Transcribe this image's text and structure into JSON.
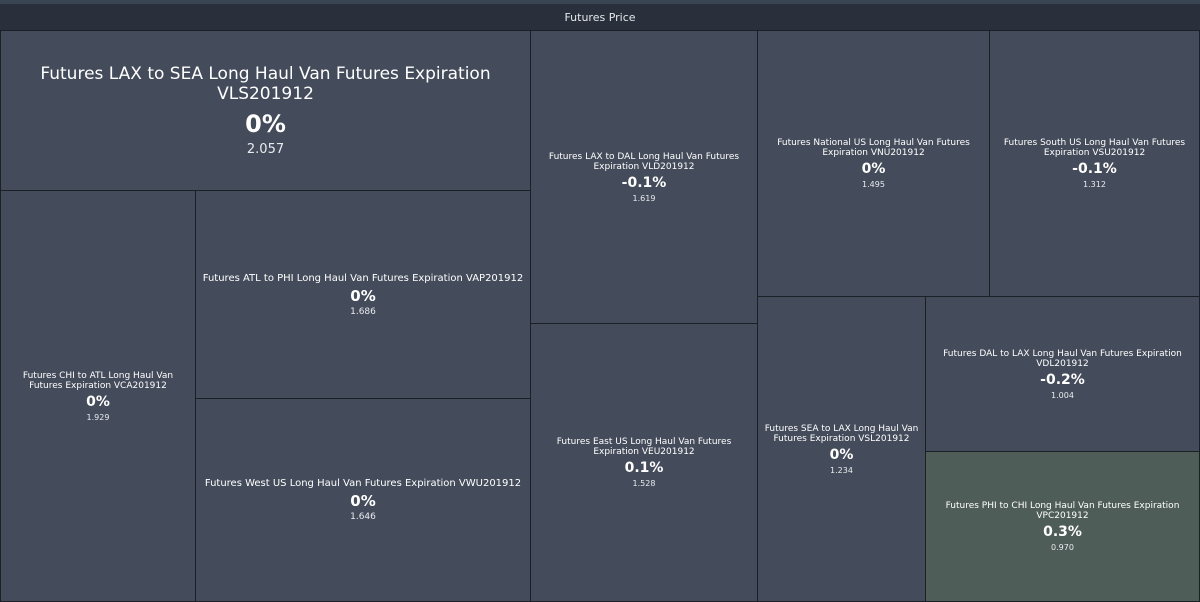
{
  "header": {
    "title": "Futures Price"
  },
  "tiles": [
    {
      "name": "Futures LAX to SEA Long Haul Van Futures Expiration VLS201912",
      "pct": "0%",
      "price": "2.057"
    },
    {
      "name": "Futures LAX to DAL Long Haul Van Futures Expiration VLD201912",
      "pct": "-0.1%",
      "price": "1.619"
    },
    {
      "name": "Futures National US Long Haul Van Futures Expiration VNU201912",
      "pct": "0%",
      "price": "1.495"
    },
    {
      "name": "Futures South US Long Haul Van Futures Expiration VSU201912",
      "pct": "-0.1%",
      "price": "1.312"
    },
    {
      "name": "Futures CHI to ATL Long Haul Van Futures Expiration VCA201912",
      "pct": "0%",
      "price": "1.929"
    },
    {
      "name": "Futures ATL to PHI Long Haul Van Futures Expiration VAP201912",
      "pct": "0%",
      "price": "1.686"
    },
    {
      "name": "Futures West US Long Haul Van Futures Expiration VWU201912",
      "pct": "0%",
      "price": "1.646"
    },
    {
      "name": "Futures East US Long Haul Van Futures Expiration VEU201912",
      "pct": "0.1%",
      "price": "1.528"
    },
    {
      "name": "Futures SEA to LAX Long Haul Van Futures Expiration VSL201912",
      "pct": "0%",
      "price": "1.234"
    },
    {
      "name": "Futures DAL to LAX Long Haul Van Futures Expiration VDL201912",
      "pct": "-0.2%",
      "price": "1.004"
    },
    {
      "name": "Futures PHI to CHI Long Haul Van Futures Expiration VPC201912",
      "pct": "0.3%",
      "price": "0.970"
    }
  ]
}
